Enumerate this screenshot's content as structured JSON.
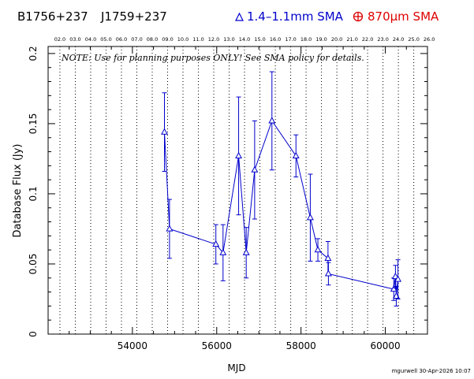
{
  "header": {
    "source_name": "B1756+237",
    "alt_name": "J1759+237",
    "legend_1mm": "1.4–1.1mm SMA",
    "legend_870": "870µm SMA",
    "color_1mm": "#0000cc",
    "color_870": "#dd0000"
  },
  "footer": {
    "credit": "mgurwell 30-Apr-2026 10:07"
  },
  "chart_data": {
    "type": "scatter",
    "xlabel": "MJD",
    "ylabel": "Database Flux (Jy)",
    "xlim": [
      52000,
      61000
    ],
    "ylim": [
      0,
      0.205
    ],
    "x_ticks": [
      54000,
      56000,
      58000,
      60000
    ],
    "x_tick_labels": [
      "54000",
      "56000",
      "58000",
      "60000"
    ],
    "y_ticks": [
      0,
      0.05,
      0.1,
      0.15,
      0.2
    ],
    "y_tick_labels": [
      "0",
      "0.05",
      "0.1",
      "0.15",
      "0.2"
    ],
    "top_axis_labels": [
      "02.0",
      "03.0",
      "04.0",
      "05.0",
      "06.0",
      "07.0",
      "08.0",
      "09.0",
      "10.0",
      "11.0",
      "12.0",
      "13.0",
      "14.0",
      "15.0",
      "16.0",
      "17.0",
      "18.0",
      "19.0",
      "20.0",
      "21.0",
      "22.0",
      "23.0",
      "24.0",
      "25.0",
      "26.0"
    ],
    "top_axis_positions": [
      52280,
      52645,
      53010,
      53375,
      53740,
      54105,
      54470,
      54835,
      55200,
      55565,
      55930,
      56295,
      56660,
      57025,
      57390,
      57755,
      58120,
      58485,
      58850,
      59215,
      59580,
      59945,
      60310,
      60675,
      61040
    ],
    "annotation": "NOTE: Use for planning purposes ONLY!  See SMA policy for details.",
    "series": [
      {
        "name": "1.4–1.1mm SMA",
        "color": "#0000cc",
        "marker": "triangle",
        "points": [
          {
            "x": 54760,
            "y": 0.144,
            "err": 0.028
          },
          {
            "x": 54880,
            "y": 0.075,
            "err": 0.021
          },
          {
            "x": 55980,
            "y": 0.064,
            "err": 0.014
          },
          {
            "x": 56150,
            "y": 0.058,
            "err": 0.02
          },
          {
            "x": 56520,
            "y": 0.127,
            "err": 0.042
          },
          {
            "x": 56700,
            "y": 0.058,
            "err": 0.018
          },
          {
            "x": 56900,
            "y": 0.117,
            "err": 0.035
          },
          {
            "x": 57310,
            "y": 0.152,
            "err": 0.035
          },
          {
            "x": 57880,
            "y": 0.127,
            "err": 0.015
          },
          {
            "x": 58220,
            "y": 0.083,
            "err": 0.031
          },
          {
            "x": 58400,
            "y": 0.06,
            "err": 0.008
          },
          {
            "x": 58640,
            "y": 0.054,
            "err": 0.012
          },
          {
            "x": 58650,
            "y": 0.043,
            "err": 0.008
          },
          {
            "x": 60200,
            "y": 0.032,
            "err": 0.008
          },
          {
            "x": 60240,
            "y": 0.041,
            "err": 0.008
          },
          {
            "x": 60260,
            "y": 0.027,
            "err": 0.007
          },
          {
            "x": 60300,
            "y": 0.039,
            "err": 0.014
          }
        ]
      }
    ]
  }
}
